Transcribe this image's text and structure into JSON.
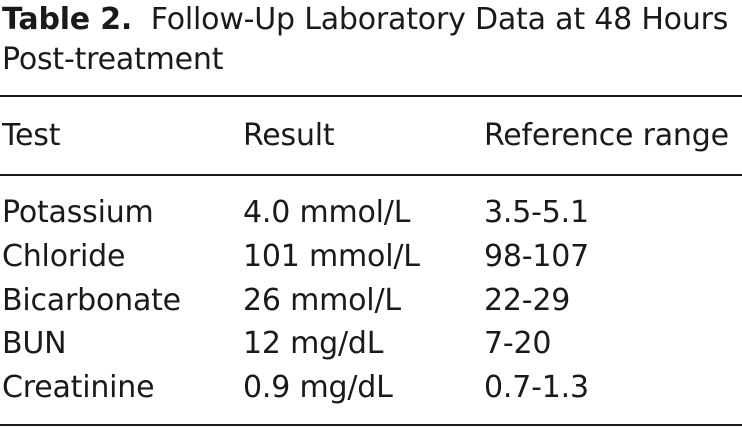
{
  "caption": {
    "label": "Table 2.",
    "title": "Follow-Up Laboratory Data at 48 Hours Post-treatment"
  },
  "table": {
    "headers": [
      "Test",
      "Result",
      "Reference range"
    ],
    "rows": [
      [
        "Potassium",
        "4.0 mmol/L",
        "3.5-5.1"
      ],
      [
        "Chloride",
        "101 mmol/L",
        "98-107"
      ],
      [
        "Bicarbonate",
        "26 mmol/L",
        "22-29"
      ],
      [
        "BUN",
        "12 mg/dL",
        "7-20"
      ],
      [
        "Creatinine",
        "0.9 mg/dL",
        "0.7-1.3"
      ]
    ]
  }
}
